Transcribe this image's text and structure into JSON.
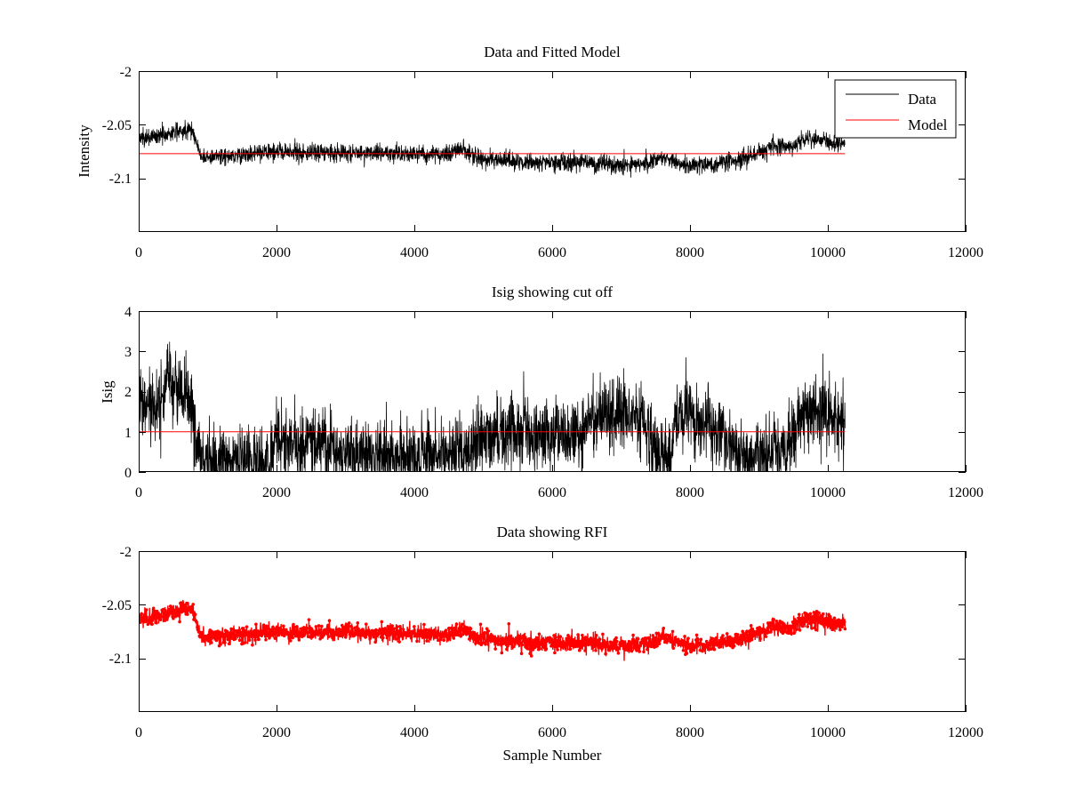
{
  "chart_data": [
    {
      "type": "line",
      "title": "Data and Fitted Model",
      "xlabel": "",
      "ylabel": "Intensity",
      "xlim": [
        0,
        12000
      ],
      "ylim": [
        -2.15,
        -2.0
      ],
      "xticks": [
        "0",
        "2000",
        "4000",
        "6000",
        "8000",
        "10000",
        "12000"
      ],
      "yticks": [
        "-2",
        "-2.05",
        "-2.1"
      ],
      "grid": false,
      "legend_position": "top-right",
      "series": [
        {
          "name": "Data",
          "color": "#000000",
          "style": "noisy-line",
          "noise": 0.004,
          "x": [
            0,
            150,
            300,
            450,
            600,
            750,
            820,
            900,
            1000,
            1200,
            1500,
            2000,
            2500,
            3000,
            3500,
            4000,
            4500,
            4700,
            4900,
            5200,
            5600,
            6000,
            6500,
            7000,
            7400,
            7600,
            7800,
            8000,
            8300,
            8700,
            9000,
            9200,
            9500,
            9700,
            9900,
            10100,
            10250
          ],
          "values": [
            -2.063,
            -2.062,
            -2.06,
            -2.058,
            -2.056,
            -2.053,
            -2.062,
            -2.08,
            -2.08,
            -2.079,
            -2.078,
            -2.075,
            -2.076,
            -2.076,
            -2.077,
            -2.077,
            -2.078,
            -2.072,
            -2.08,
            -2.083,
            -2.085,
            -2.085,
            -2.085,
            -2.088,
            -2.086,
            -2.08,
            -2.085,
            -2.089,
            -2.087,
            -2.083,
            -2.076,
            -2.071,
            -2.07,
            -2.063,
            -2.064,
            -2.067,
            -2.067
          ]
        },
        {
          "name": "Model",
          "color": "#ff0000",
          "style": "line",
          "x": [
            0,
            10250
          ],
          "values": [
            -2.077,
            -2.077
          ]
        }
      ]
    },
    {
      "type": "line",
      "title": "Isig showing cut off",
      "xlabel": "",
      "ylabel": "Isig",
      "xlim": [
        0,
        12000
      ],
      "ylim": [
        0,
        4
      ],
      "xticks": [
        "0",
        "2000",
        "4000",
        "6000",
        "8000",
        "10000",
        "12000"
      ],
      "yticks": [
        "0",
        "1",
        "2",
        "3",
        "4"
      ],
      "grid": false,
      "series": [
        {
          "color": "#000000",
          "style": "noisy-line",
          "noise": 0.45,
          "floor": 0,
          "x": [
            0,
            150,
            300,
            450,
            600,
            750,
            820,
            900,
            1200,
            1500,
            1900,
            2000,
            2500,
            3000,
            3500,
            4000,
            4500,
            4800,
            5000,
            5500,
            6000,
            6400,
            6600,
            7000,
            7300,
            7500,
            7700,
            7800,
            8000,
            8300,
            8600,
            8800,
            9000,
            9300,
            9500,
            9600,
            9800,
            10000,
            10250
          ],
          "values": [
            1.6,
            1.6,
            1.5,
            2.2,
            2.1,
            1.8,
            0.9,
            0.2,
            0.3,
            0.3,
            0.25,
            0.75,
            0.7,
            0.45,
            0.35,
            0.4,
            0.45,
            0.6,
            0.85,
            0.9,
            0.95,
            0.9,
            1.35,
            1.4,
            1.3,
            0.6,
            0.3,
            1.3,
            1.45,
            1.3,
            0.7,
            0.35,
            0.3,
            0.55,
            0.7,
            1.5,
            1.6,
            1.4,
            1.3
          ]
        },
        {
          "color": "#ff0000",
          "style": "line",
          "x": [
            0,
            10250
          ],
          "values": [
            1.0,
            1.0
          ]
        }
      ]
    },
    {
      "type": "scatter",
      "title": "Data showing RFI",
      "xlabel": "Sample Number",
      "ylabel": "",
      "xlim": [
        0,
        12000
      ],
      "ylim": [
        -2.15,
        -2.0
      ],
      "xticks": [
        "0",
        "2000",
        "4000",
        "6000",
        "8000",
        "10000",
        "12000"
      ],
      "yticks": [
        "-2",
        "-2.05",
        "-2.1"
      ],
      "grid": false,
      "series": [
        {
          "color": "#ff0000",
          "style": "dense-markers",
          "noise": 0.004,
          "x": [
            0,
            150,
            300,
            450,
            600,
            750,
            820,
            900,
            1000,
            1200,
            1500,
            2000,
            2500,
            3000,
            3500,
            4000,
            4500,
            4700,
            4900,
            5200,
            5600,
            6000,
            6500,
            7000,
            7400,
            7600,
            7800,
            8000,
            8300,
            8700,
            9000,
            9200,
            9500,
            9700,
            9900,
            10100,
            10250
          ],
          "values": [
            -2.063,
            -2.062,
            -2.06,
            -2.058,
            -2.056,
            -2.053,
            -2.062,
            -2.08,
            -2.08,
            -2.079,
            -2.078,
            -2.075,
            -2.076,
            -2.076,
            -2.077,
            -2.077,
            -2.078,
            -2.072,
            -2.08,
            -2.083,
            -2.085,
            -2.085,
            -2.085,
            -2.088,
            -2.086,
            -2.08,
            -2.085,
            -2.089,
            -2.087,
            -2.083,
            -2.076,
            -2.071,
            -2.07,
            -2.063,
            -2.064,
            -2.067,
            -2.067
          ]
        }
      ]
    }
  ]
}
